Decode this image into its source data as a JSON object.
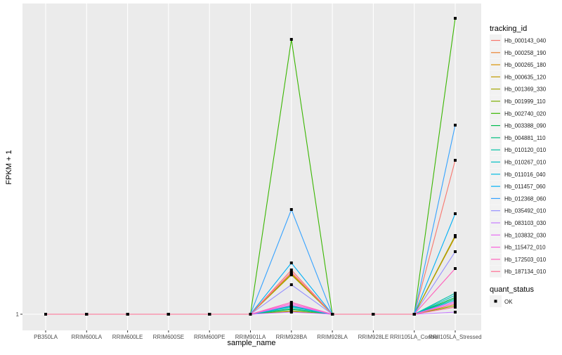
{
  "chart_data": {
    "type": "line",
    "xlabel": "sample_name",
    "ylabel": "FPKM + 1",
    "y_tick_labels": [
      "1"
    ],
    "y_tick_values": [
      1
    ],
    "ylim": [
      -1.3,
      45.2
    ],
    "y_units_note": "estimated, relative",
    "grid": true,
    "legend_placement": "right",
    "categories": [
      "PB350LA",
      "RRIM600LA",
      "RRIM600LE",
      "RRIM600SE",
      "RRIM600PE",
      "RRIM901LA",
      "RRIM928BA",
      "RRIM928LA",
      "RRIM928LE",
      "RRII105LA_Control",
      "RRII105LA_Stressed"
    ],
    "legend_title": "tracking_id",
    "series": [
      {
        "name": "Hb_000143_040",
        "color": "#F8766D",
        "values": [
          1,
          1,
          1,
          1,
          1,
          1,
          7.3,
          1,
          1,
          1,
          22.9
        ]
      },
      {
        "name": "Hb_000258_190",
        "color": "#EA8331",
        "values": [
          1,
          1,
          1,
          1,
          1,
          1,
          1.4,
          1,
          1,
          1,
          2.4
        ]
      },
      {
        "name": "Hb_000265_180",
        "color": "#D89000",
        "values": [
          1,
          1,
          1,
          1,
          1,
          1,
          6.8,
          1,
          1,
          1,
          12.0
        ]
      },
      {
        "name": "Hb_000635_120",
        "color": "#C09B00",
        "values": [
          1,
          1,
          1,
          1,
          1,
          1,
          6.7,
          1,
          1,
          1,
          12.1
        ]
      },
      {
        "name": "Hb_001369_330",
        "color": "#A3A500",
        "values": [
          1,
          1,
          1,
          1,
          1,
          1,
          6.6,
          1,
          1,
          1,
          12.2
        ]
      },
      {
        "name": "Hb_001999_110",
        "color": "#7CAE00",
        "values": [
          1,
          1,
          1,
          1,
          1,
          1,
          1.5,
          1,
          1,
          1,
          2.2
        ]
      },
      {
        "name": "Hb_002740_020",
        "color": "#39B600",
        "values": [
          1,
          1,
          1,
          1,
          1,
          1,
          40.1,
          1,
          1,
          1,
          43.1
        ]
      },
      {
        "name": "Hb_003388_090",
        "color": "#00BB4E",
        "values": [
          1,
          1,
          1,
          1,
          1,
          1,
          1.8,
          1,
          1,
          1,
          3.4
        ]
      },
      {
        "name": "Hb_004881_110",
        "color": "#00BF7D",
        "values": [
          1,
          1,
          1,
          1,
          1,
          1,
          1.7,
          1,
          1,
          1,
          3.2
        ]
      },
      {
        "name": "Hb_010120_010",
        "color": "#00C1A3",
        "values": [
          1,
          1,
          1,
          1,
          1,
          1,
          2.2,
          1,
          1,
          1,
          4.0
        ]
      },
      {
        "name": "Hb_010267_010",
        "color": "#00BFC4",
        "values": [
          1,
          1,
          1,
          1,
          1,
          1,
          2.1,
          1,
          1,
          1,
          3.7
        ]
      },
      {
        "name": "Hb_011016_040",
        "color": "#00BAE0",
        "values": [
          1,
          1,
          1,
          1,
          1,
          1,
          2.0,
          1,
          1,
          1,
          3.0
        ]
      },
      {
        "name": "Hb_011457_060",
        "color": "#00B0F6",
        "values": [
          1,
          1,
          1,
          1,
          1,
          1,
          8.3,
          1,
          1,
          1,
          15.3
        ]
      },
      {
        "name": "Hb_012368_060",
        "color": "#35A2FF",
        "values": [
          1,
          1,
          1,
          1,
          1,
          1,
          15.9,
          1,
          1,
          1,
          27.9
        ]
      },
      {
        "name": "Hb_035492_010",
        "color": "#9590FF",
        "values": [
          1,
          1,
          1,
          1,
          1,
          1,
          5.2,
          1,
          1,
          1,
          9.9
        ]
      },
      {
        "name": "Hb_083103_030",
        "color": "#C77CFF",
        "values": [
          1,
          1,
          1,
          1,
          1,
          1,
          1.3,
          1,
          1,
          1,
          1.3
        ]
      },
      {
        "name": "Hb_103832_030",
        "color": "#E76BF3",
        "values": [
          1,
          1,
          1,
          1,
          1,
          1,
          2.3,
          1,
          1,
          1,
          2.6
        ]
      },
      {
        "name": "Hb_115472_010",
        "color": "#FA62DB",
        "values": [
          1,
          1,
          1,
          1,
          1,
          1,
          2.5,
          1,
          1,
          1,
          2.8
        ]
      },
      {
        "name": "Hb_172503_010",
        "color": "#FF62BC",
        "values": [
          1,
          1,
          1,
          1,
          1,
          1,
          2.7,
          1,
          1,
          1,
          7.5
        ]
      },
      {
        "name": "Hb_187134_010",
        "color": "#FF6C90",
        "values": [
          1,
          1,
          1,
          1,
          1,
          1,
          7.0,
          1,
          1,
          1,
          2.0
        ]
      }
    ],
    "shape_legend": {
      "title": "quant_status",
      "items": [
        "OK"
      ]
    }
  }
}
